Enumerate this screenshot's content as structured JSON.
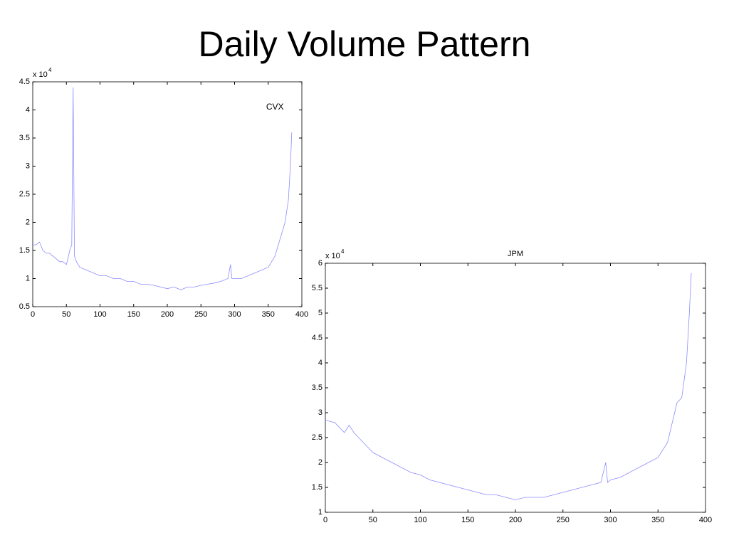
{
  "title": "Daily Volume Pattern",
  "chart_data": [
    {
      "type": "line",
      "annotation": "CVX",
      "y_scale_label": "x 10",
      "y_scale_exponent": "4",
      "x": [
        0,
        5,
        10,
        15,
        20,
        25,
        30,
        35,
        40,
        45,
        50,
        55,
        58,
        60,
        62,
        65,
        70,
        80,
        90,
        100,
        110,
        120,
        130,
        140,
        150,
        160,
        170,
        180,
        190,
        200,
        210,
        220,
        230,
        240,
        250,
        260,
        270,
        280,
        290,
        294,
        296,
        300,
        310,
        320,
        330,
        340,
        350,
        355,
        360,
        365,
        370,
        375,
        380,
        383,
        385
      ],
      "series": [
        {
          "color": "#8c8cff",
          "values": [
            1.6,
            1.6,
            1.65,
            1.5,
            1.45,
            1.45,
            1.4,
            1.35,
            1.3,
            1.3,
            1.25,
            1.5,
            1.6,
            4.4,
            1.4,
            1.3,
            1.2,
            1.15,
            1.1,
            1.05,
            1.05,
            1.0,
            1.0,
            0.95,
            0.95,
            0.9,
            0.9,
            0.88,
            0.85,
            0.82,
            0.85,
            0.8,
            0.85,
            0.85,
            0.88,
            0.9,
            0.92,
            0.95,
            1.0,
            1.25,
            1.0,
            1.0,
            1.0,
            1.05,
            1.1,
            1.15,
            1.2,
            1.3,
            1.4,
            1.6,
            1.8,
            2.0,
            2.4,
            3.0,
            3.6
          ]
        }
      ],
      "xlim": [
        0,
        400
      ],
      "xticks": [
        0,
        50,
        100,
        150,
        200,
        250,
        300,
        350,
        400
      ],
      "ylim": [
        0.5,
        4.5
      ],
      "yticks": [
        0.5,
        1,
        1.5,
        2,
        2.5,
        3,
        3.5,
        4,
        4.5
      ]
    },
    {
      "type": "line",
      "title": "JPM",
      "y_scale_label": "x 10",
      "y_scale_exponent": "4",
      "x": [
        0,
        10,
        20,
        25,
        30,
        40,
        50,
        60,
        70,
        80,
        90,
        100,
        110,
        120,
        130,
        140,
        150,
        160,
        170,
        180,
        190,
        200,
        210,
        220,
        230,
        240,
        250,
        260,
        270,
        280,
        290,
        295,
        297,
        300,
        310,
        320,
        330,
        340,
        350,
        360,
        365,
        370,
        375,
        380,
        383,
        385
      ],
      "series": [
        {
          "color": "#8c8cff",
          "values": [
            2.85,
            2.8,
            2.6,
            2.75,
            2.6,
            2.4,
            2.2,
            2.1,
            2.0,
            1.9,
            1.8,
            1.75,
            1.65,
            1.6,
            1.55,
            1.5,
            1.45,
            1.4,
            1.35,
            1.35,
            1.3,
            1.25,
            1.3,
            1.3,
            1.3,
            1.35,
            1.4,
            1.45,
            1.5,
            1.55,
            1.6,
            2.0,
            1.6,
            1.65,
            1.7,
            1.8,
            1.9,
            2.0,
            2.1,
            2.4,
            2.8,
            3.2,
            3.3,
            4.0,
            5.0,
            5.8
          ]
        }
      ],
      "xlim": [
        0,
        400
      ],
      "xticks": [
        0,
        50,
        100,
        150,
        200,
        250,
        300,
        350,
        400
      ],
      "ylim": [
        1,
        6
      ],
      "yticks": [
        1,
        1.5,
        2,
        2.5,
        3,
        3.5,
        4,
        4.5,
        5,
        5.5,
        6
      ]
    }
  ]
}
